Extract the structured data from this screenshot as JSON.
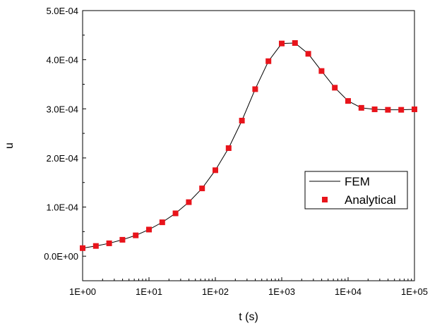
{
  "chart_data": {
    "type": "line",
    "xlabel": "t (s)",
    "ylabel": "u",
    "x_scale": "log",
    "xlim": [
      1,
      100000
    ],
    "ylim": [
      -5e-05,
      0.0005
    ],
    "x_ticks": [
      {
        "value": 1,
        "label": "1E+00"
      },
      {
        "value": 10,
        "label": "1E+01"
      },
      {
        "value": 100,
        "label": "1E+02"
      },
      {
        "value": 1000,
        "label": "1E+03"
      },
      {
        "value": 10000,
        "label": "1E+04"
      },
      {
        "value": 100000,
        "label": "1E+05"
      }
    ],
    "y_ticks": [
      {
        "value": 0,
        "label": "0.0E+00"
      },
      {
        "value": 0.0001,
        "label": "1.0E-04"
      },
      {
        "value": 0.0002,
        "label": "2.0E-04"
      },
      {
        "value": 0.0003,
        "label": "3.0E-04"
      },
      {
        "value": 0.0004,
        "label": "4.0E-04"
      },
      {
        "value": 0.0005,
        "label": "5.0E-04"
      }
    ],
    "grid": false,
    "legend_position": "right",
    "series": [
      {
        "name": "FEM",
        "style": "line",
        "color": "#000000",
        "points": [
          [
            1,
            1.64e-05
          ],
          [
            1.585,
            2.08e-05
          ],
          [
            2.512,
            2.62e-05
          ],
          [
            3.981,
            3.34e-05
          ],
          [
            6.31,
            4.24e-05
          ],
          [
            10,
            5.42e-05
          ],
          [
            15.85,
            6.9e-05
          ],
          [
            25.12,
            8.72e-05
          ],
          [
            39.81,
            0.00011
          ],
          [
            63.1,
            0.000138
          ],
          [
            100,
            0.000175
          ],
          [
            158.5,
            0.00022
          ],
          [
            251.2,
            0.000276
          ],
          [
            398.1,
            0.00034
          ],
          [
            631,
            0.000397
          ],
          [
            1000,
            0.000433
          ],
          [
            1585,
            0.000434
          ],
          [
            2512,
            0.000412
          ],
          [
            3981,
            0.000377
          ],
          [
            6310,
            0.000343
          ],
          [
            10000,
            0.000316
          ],
          [
            15850,
            0.000302
          ],
          [
            25120,
            0.000299
          ],
          [
            39810,
            0.000298
          ],
          [
            63100,
            0.000298
          ],
          [
            100000,
            0.000299
          ]
        ]
      },
      {
        "name": "Analytical",
        "style": "markers",
        "marker": "square",
        "color": "#e8141b",
        "points": [
          [
            1,
            1.64e-05
          ],
          [
            1.585,
            2.08e-05
          ],
          [
            2.512,
            2.62e-05
          ],
          [
            3.981,
            3.34e-05
          ],
          [
            6.31,
            4.24e-05
          ],
          [
            10,
            5.42e-05
          ],
          [
            15.85,
            6.9e-05
          ],
          [
            25.12,
            8.72e-05
          ],
          [
            39.81,
            0.00011
          ],
          [
            63.1,
            0.000138
          ],
          [
            100,
            0.000175
          ],
          [
            158.5,
            0.00022
          ],
          [
            251.2,
            0.000276
          ],
          [
            398.1,
            0.00034
          ],
          [
            631,
            0.000397
          ],
          [
            1000,
            0.000433
          ],
          [
            1585,
            0.000434
          ],
          [
            2512,
            0.000412
          ],
          [
            3981,
            0.000377
          ],
          [
            6310,
            0.000343
          ],
          [
            10000,
            0.000316
          ],
          [
            15850,
            0.000302
          ],
          [
            25120,
            0.000299
          ],
          [
            39810,
            0.000298
          ],
          [
            63100,
            0.000298
          ],
          [
            100000,
            0.000299
          ]
        ]
      }
    ]
  }
}
